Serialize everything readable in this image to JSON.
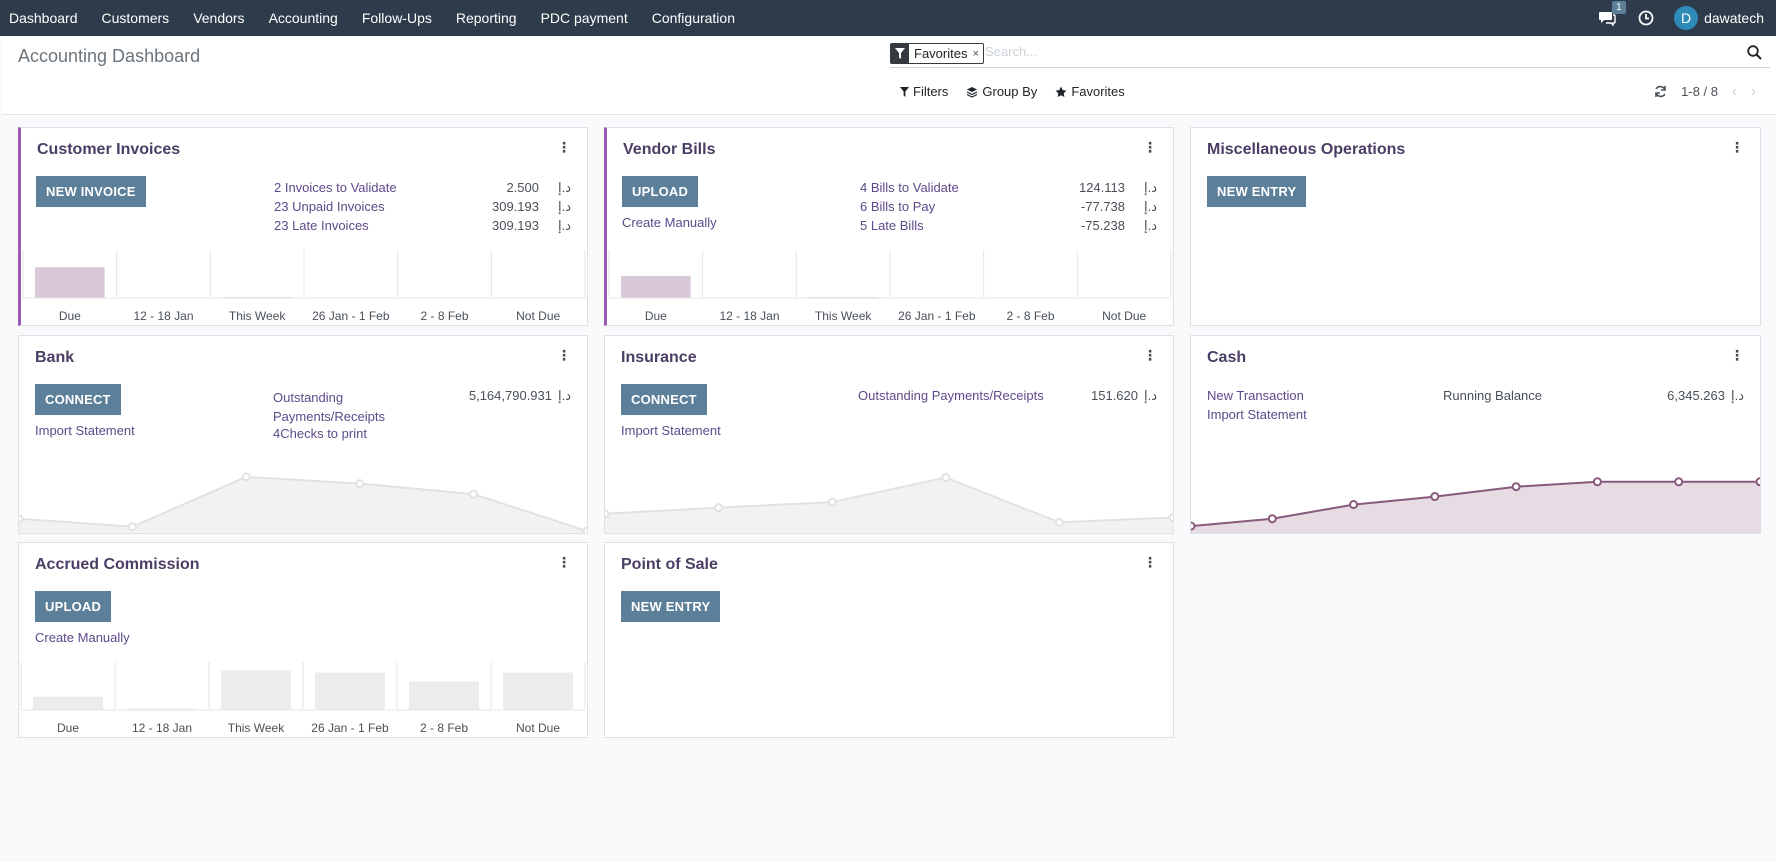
{
  "nav": {
    "items": [
      "Dashboard",
      "Customers",
      "Vendors",
      "Accounting",
      "Follow-Ups",
      "Reporting",
      "PDC payment",
      "Configuration"
    ],
    "messages_count": "1",
    "user_initial": "D",
    "user_name": "dawatech"
  },
  "page_title": "Accounting Dashboard",
  "search": {
    "facet_label": "Favorites",
    "facet_remove": "×",
    "placeholder": "Search..."
  },
  "toolbar": {
    "filters": "Filters",
    "group_by": "Group By",
    "favorites": "Favorites"
  },
  "pager": {
    "value": "1-8 / 8"
  },
  "bar_labels": [
    "Due",
    "12 - 18 Jan",
    "This Week",
    "26 Jan - 1 Feb",
    "2 - 8 Feb",
    "Not Due"
  ],
  "currency": "د.إ",
  "cards": {
    "customer_invoices": {
      "title": "Customer Invoices",
      "button": "NEW INVOICE",
      "stats": [
        {
          "label": "2 Invoices to Validate",
          "amount": "2.500"
        },
        {
          "label": "23 Unpaid Invoices",
          "amount": "309.193"
        },
        {
          "label": "23 Late Invoices",
          "amount": "309.193"
        }
      ],
      "bars": [
        0.7,
        0,
        0.02,
        0,
        0,
        0
      ]
    },
    "vendor_bills": {
      "title": "Vendor Bills",
      "button": "UPLOAD",
      "link": "Create Manually",
      "stats": [
        {
          "label": "4 Bills to Validate",
          "amount": "124.113"
        },
        {
          "label": "6 Bills to Pay",
          "amount": "-77.738"
        },
        {
          "label": "5 Late Bills",
          "amount": "-75.238"
        }
      ],
      "bars": [
        0.5,
        0,
        0.02,
        0,
        0,
        0
      ]
    },
    "misc": {
      "title": "Miscellaneous Operations",
      "button": "NEW ENTRY"
    },
    "bank": {
      "title": "Bank",
      "button": "CONNECT",
      "link": "Import Statement",
      "outstanding_label": "Outstanding Payments/Receipts",
      "outstanding_amount": "5,164,790.931",
      "checks": "4Checks to print",
      "line": [
        0.2,
        0.07,
        0.88,
        0.77,
        0.6,
        0
      ]
    },
    "insurance": {
      "title": "Insurance",
      "button": "CONNECT",
      "link": "Import Statement",
      "outstanding_label": "Outstanding Payments/Receipts",
      "outstanding_amount": "151.620",
      "line": [
        0.28,
        0.38,
        0.47,
        0.87,
        0.14,
        0.22
      ]
    },
    "cash": {
      "title": "Cash",
      "link1": "New Transaction",
      "link2": "Import Statement",
      "balance_label": "Running Balance",
      "balance_amount": "6,345.263",
      "line": [
        0.08,
        0.2,
        0.43,
        0.56,
        0.72,
        0.8,
        0.8,
        0.8
      ]
    },
    "accrued": {
      "title": "Accrued Commission",
      "button": "UPLOAD",
      "link": "Create Manually",
      "bars": [
        0.3,
        0.03,
        0.9,
        0.85,
        0.65,
        0.85
      ]
    },
    "pos": {
      "title": "Point of Sale",
      "button": "NEW ENTRY"
    }
  },
  "colors": {
    "navbar": "#2e3b4a",
    "button": "#5c7f9a",
    "accent": "#9b59b6",
    "cash_line": "#875a7b"
  }
}
